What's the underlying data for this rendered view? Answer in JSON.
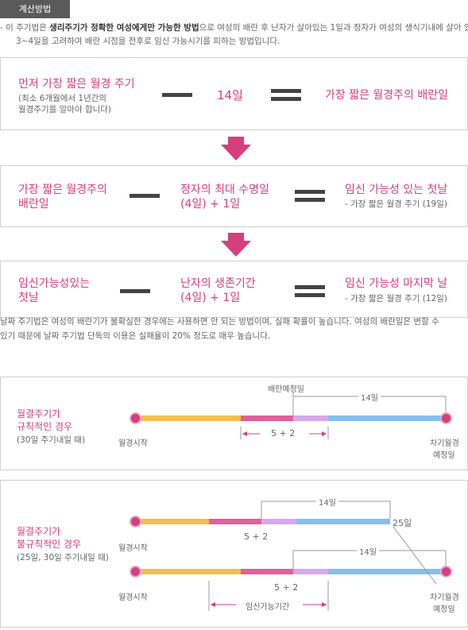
{
  "header": {
    "tag": "계산방법"
  },
  "intro": {
    "line1_prefix": "- 이 주기법은 ",
    "line1_bold": "생리주기가 정확한 여성에게만 가능한 방법",
    "line1_suffix": "으로 여성의 배란 후 난자가 살아있는 1일과 정자가 여성의 생식기내에 살아 있는",
    "line2": "3~4일을 고려하여 배란 시점을 전후로 임신 가능시기를 피하는 방법입니다."
  },
  "formula1": {
    "left_title": "먼저 가장 짧은 월경 주기",
    "left_sub1": "(최소 6개월에서 1년간의",
    "left_sub2": "월경주기를 알아야 합니다)",
    "middle": "14일",
    "right": "가장 짧은 월경주의 배란일"
  },
  "formula2": {
    "left1": "가장 짧은 월경주의",
    "left2": "배란일",
    "middle1": "정자의 최대 수명일",
    "middle2": "(4일) + 1일",
    "right_title": "임신 가능성 있는 첫날",
    "right_sub": "- 가장 짧은 월경 주기 (19일)"
  },
  "formula3": {
    "left1": "임신가능성있는",
    "left2": "첫날",
    "middle1": "난자의 생존기간",
    "middle2": "(4일) + 1일",
    "right_title": "임신 가능성 마지막 날",
    "right_sub": "- 가장 짧은 월경 주기 (12일)"
  },
  "note": {
    "line1": "날짜 주기법은 여성의 배란기가 불확실한 경우에는 사용하면 안 되는 방법이며, 실패 확률이 높습니다. 여성의 배란일은 변할 수",
    "line2": "있기 때문에 날짜 주기법 단독의 이용은 실패율이 20% 정도로 매우 높습니다."
  },
  "regular": {
    "title1": "월결주기가",
    "title2": "규칙적인 경우",
    "sub": "(30일 주기내일 때)",
    "ovulation_label": "배란예정일",
    "days_label": "14일",
    "start_label": "월경시작",
    "end_label1": "차기월경",
    "end_label2": "예정일",
    "range_label": "5 + 2"
  },
  "irregular": {
    "title1": "월결주기가",
    "title2": "불규칙적인 경우",
    "sub": "(25일, 30일 주기내일 때)",
    "top_days_label": "14일",
    "top_end_label": "25일",
    "top_start_label": "월경시작",
    "top_range_label": "5 + 2",
    "bottom_days_label": "14일",
    "bottom_start_label": "월경시작",
    "bottom_range_label": "5 + 2",
    "fertile_label": "임신가능기간",
    "end_label1": "차기월경",
    "end_label2": "예정일"
  },
  "colors": {
    "accent": "#d63f7c",
    "bar_yellow": "#f5bd4f",
    "bar_pink": "#e1609b",
    "bar_lavender": "#d8a8ee",
    "bar_blue": "#86bfee"
  }
}
